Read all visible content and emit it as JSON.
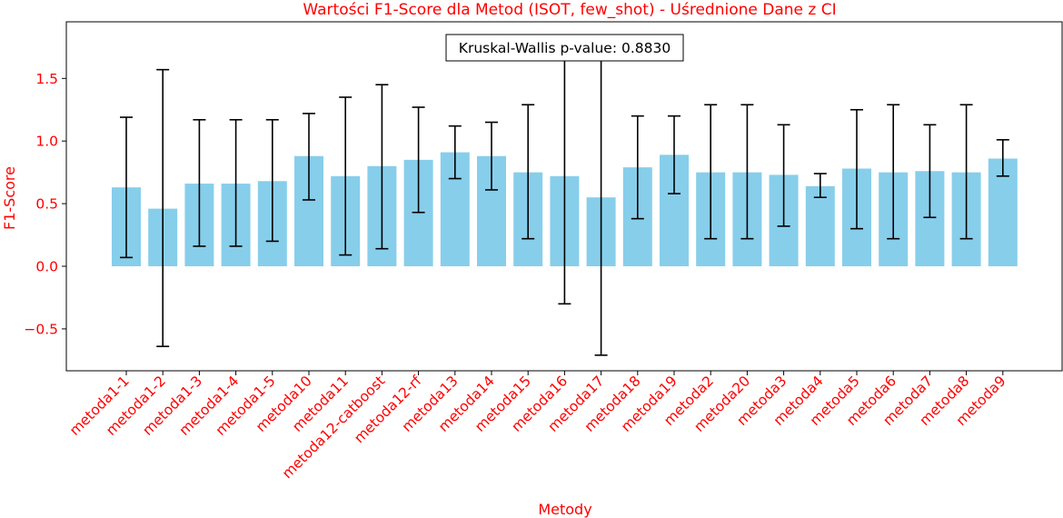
{
  "chart_data": {
    "type": "bar",
    "title": "Wartości F1-Score dla Metod (ISOT, few_shot) - Uśrednione Dane z CI",
    "xlabel": "Metody",
    "ylabel": "F1-Score",
    "ylim": [
      -0.85,
      1.93
    ],
    "yticks": [
      "−0.5",
      "0.0",
      "0.5",
      "1.0",
      "1.5"
    ],
    "ytick_values": [
      -0.5,
      0.0,
      0.5,
      1.0,
      1.5
    ],
    "annotation": "Kruskal-Wallis p-value: 0.8830",
    "colors": {
      "bar": "#87ceeb",
      "error": "#000000",
      "text": "#ff0000",
      "axis": "#000000"
    },
    "categories": [
      "metoda1-1",
      "metoda1-2",
      "metoda1-3",
      "metoda1-4",
      "metoda1-5",
      "metoda10",
      "metoda11",
      "metoda12-catboost",
      "metoda12-rf",
      "metoda13",
      "metoda14",
      "metoda15",
      "metoda16",
      "metoda17",
      "metoda18",
      "metoda19",
      "metoda2",
      "metoda20",
      "metoda3",
      "metoda4",
      "metoda5",
      "metoda6",
      "metoda7",
      "metoda8",
      "metoda9"
    ],
    "values": [
      0.63,
      0.46,
      0.66,
      0.66,
      0.68,
      0.88,
      0.72,
      0.8,
      0.85,
      0.91,
      0.88,
      0.75,
      0.72,
      0.55,
      0.79,
      0.89,
      0.75,
      0.75,
      0.73,
      0.64,
      0.78,
      0.75,
      0.76,
      0.75,
      0.86
    ],
    "ci_low": [
      0.07,
      -0.64,
      0.16,
      0.16,
      0.2,
      0.53,
      0.09,
      0.14,
      0.43,
      0.7,
      0.61,
      0.22,
      -0.3,
      -0.71,
      0.38,
      0.58,
      0.22,
      0.22,
      0.32,
      0.55,
      0.3,
      0.22,
      0.39,
      0.22,
      0.72
    ],
    "ci_high": [
      1.19,
      1.57,
      1.17,
      1.17,
      1.17,
      1.22,
      1.35,
      1.45,
      1.27,
      1.12,
      1.15,
      1.29,
      1.74,
      1.81,
      1.2,
      1.2,
      1.29,
      1.29,
      1.13,
      0.74,
      1.25,
      1.29,
      1.13,
      1.29,
      1.01
    ]
  }
}
